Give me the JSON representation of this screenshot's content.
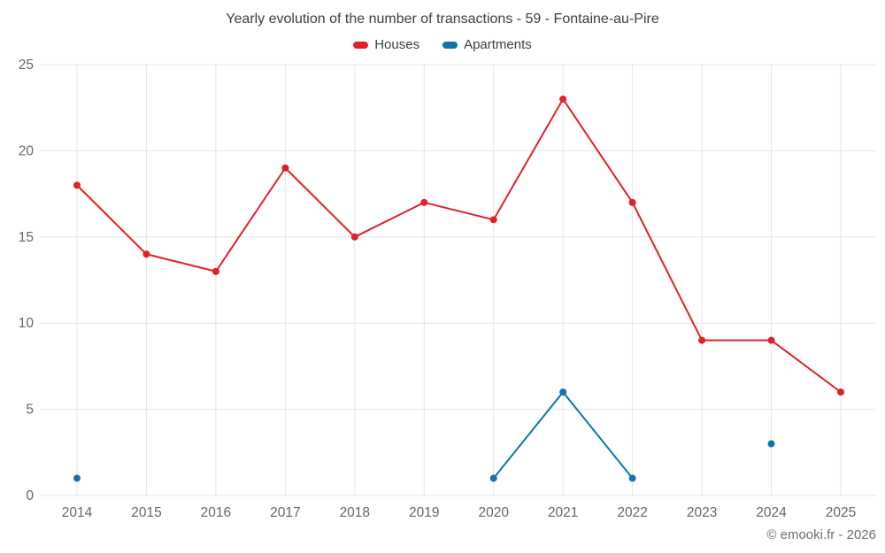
{
  "chart_data": {
    "type": "line",
    "title": "Yearly evolution of the number of transactions - 59 - Fontaine-au-Pire",
    "categories": [
      "2014",
      "2015",
      "2016",
      "2017",
      "2018",
      "2019",
      "2020",
      "2021",
      "2022",
      "2023",
      "2024",
      "2025"
    ],
    "series": [
      {
        "name": "Houses",
        "color": "#e02128",
        "values": [
          18,
          14,
          13,
          19,
          15,
          17,
          16,
          23,
          17,
          9,
          9,
          6
        ]
      },
      {
        "name": "Apartments",
        "color": "#0e76a8",
        "values": [
          1,
          null,
          null,
          null,
          null,
          null,
          1,
          6,
          1,
          null,
          3,
          null
        ]
      }
    ],
    "xlabel": "",
    "ylabel": "",
    "ylim": [
      0,
      25
    ],
    "yticks": [
      0,
      5,
      10,
      15,
      20,
      25
    ],
    "grid": true,
    "legend_position": "top"
  },
  "footer": {
    "copyright": "© emooki.fr - 2026"
  },
  "colors": {
    "background": "#ffffff",
    "grid": "#e6e6e6",
    "title_text": "#3e3e3e",
    "tick_text": "#666666",
    "footer_text": "#6e6e6e"
  }
}
